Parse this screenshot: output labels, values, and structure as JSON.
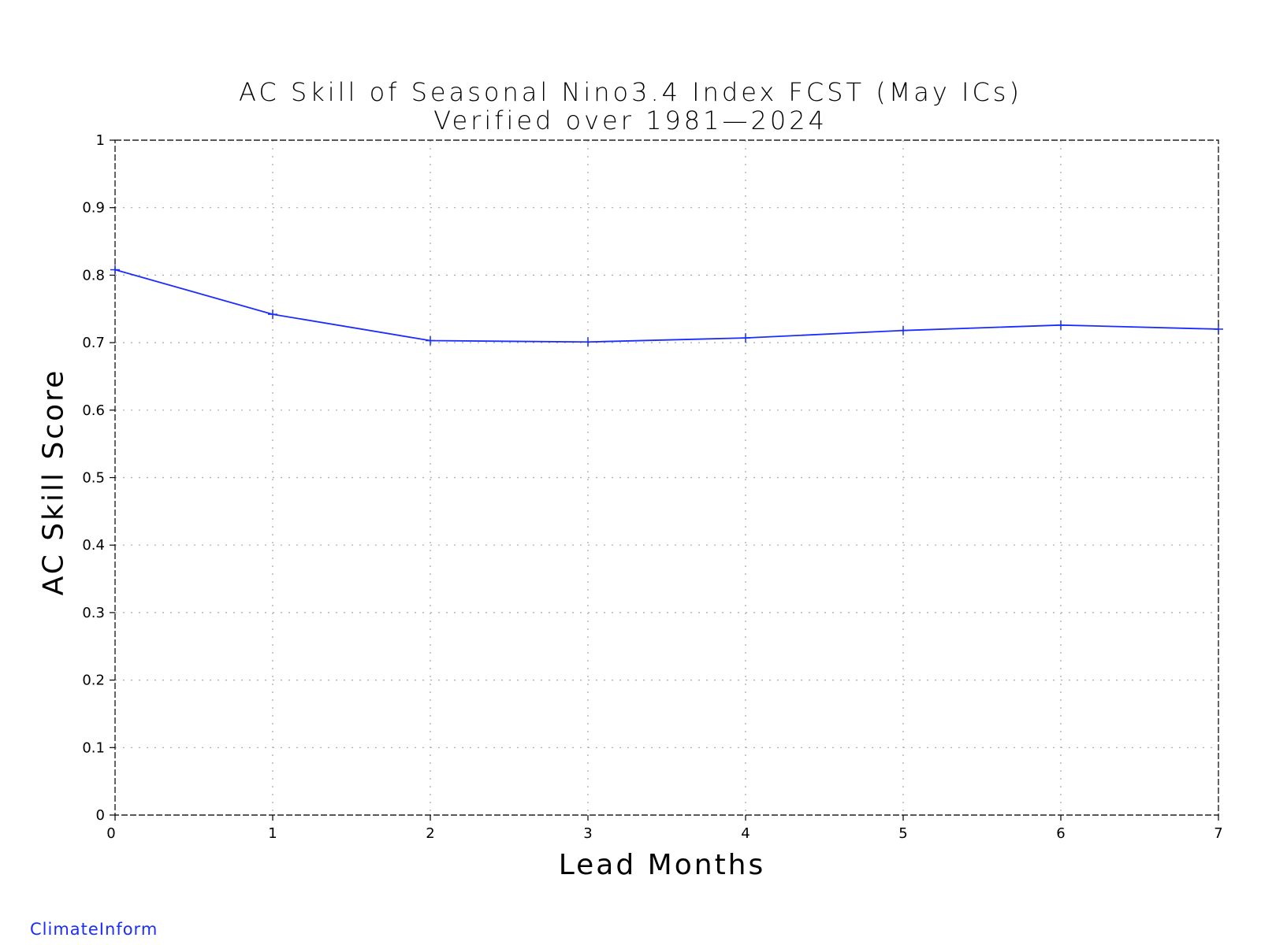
{
  "chart_data": {
    "type": "line",
    "title": "AC Skill of Seasonal Nino3.4 Index FCST (May ICs)",
    "subtitle": "Verified over 1981—2024",
    "xlabel": "Lead Months",
    "ylabel": "AC Skill Score",
    "x": [
      0,
      1,
      2,
      3,
      4,
      5,
      6,
      7
    ],
    "series": [
      {
        "values": [
          0.808,
          0.742,
          0.703,
          0.701,
          0.707,
          0.718,
          0.726,
          0.72
        ]
      }
    ],
    "xlim": [
      0,
      7
    ],
    "ylim": [
      0,
      1
    ],
    "x_ticks": [
      "0",
      "1",
      "2",
      "3",
      "4",
      "5",
      "6",
      "7"
    ],
    "y_ticks": [
      "0",
      "0.1",
      "0.2",
      "0.3",
      "0.4",
      "0.5",
      "0.6",
      "0.7",
      "0.8",
      "0.9",
      "1"
    ],
    "grid": true,
    "line_color": "#1a2cff"
  },
  "footer": {
    "credit": "ClimateInform",
    "color": "#1a2cff"
  }
}
